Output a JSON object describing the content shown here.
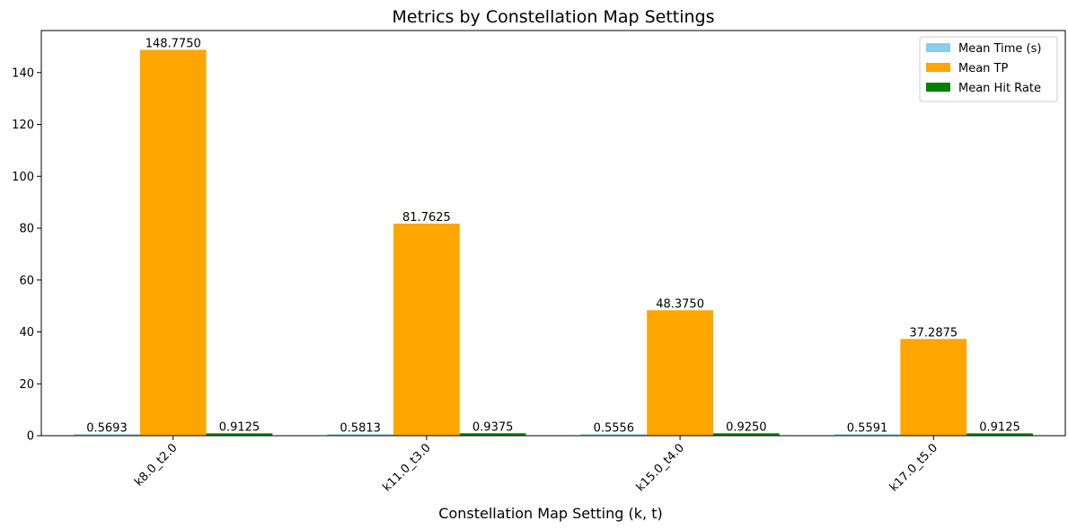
{
  "chart_data": {
    "type": "bar",
    "title": "Metrics by Constellation Map Settings",
    "xlabel": "Constellation Map Setting (k, t)",
    "ylabel": "",
    "categories": [
      "k8.0_t2.0",
      "k11.0_t3.0",
      "k15.0_t4.0",
      "k17.0_t5.0"
    ],
    "series": [
      {
        "name": "Mean Time (s)",
        "color": "#87ceeb",
        "values": [
          0.5693,
          0.5813,
          0.5556,
          0.5591
        ],
        "labels": [
          "0.5693",
          "0.5813",
          "0.5556",
          "0.5591"
        ]
      },
      {
        "name": "Mean TP",
        "color": "#ffa500",
        "values": [
          148.775,
          81.7625,
          48.375,
          37.2875
        ],
        "labels": [
          "148.7750",
          "81.7625",
          "48.3750",
          "37.2875"
        ]
      },
      {
        "name": "Mean Hit Rate",
        "color": "#008000",
        "values": [
          0.9125,
          0.9375,
          0.925,
          0.9125
        ],
        "labels": [
          "0.9125",
          "0.9375",
          "0.9250",
          "0.9125"
        ]
      }
    ],
    "ylim": [
      0,
      156.2
    ],
    "yticks": [
      0,
      20,
      40,
      60,
      80,
      100,
      120,
      140
    ],
    "ytick_labels": [
      "0",
      "20",
      "40",
      "60",
      "80",
      "100",
      "120",
      "140"
    ],
    "grid": false,
    "legend_position": "top-right",
    "xtick_rotation": 45
  }
}
